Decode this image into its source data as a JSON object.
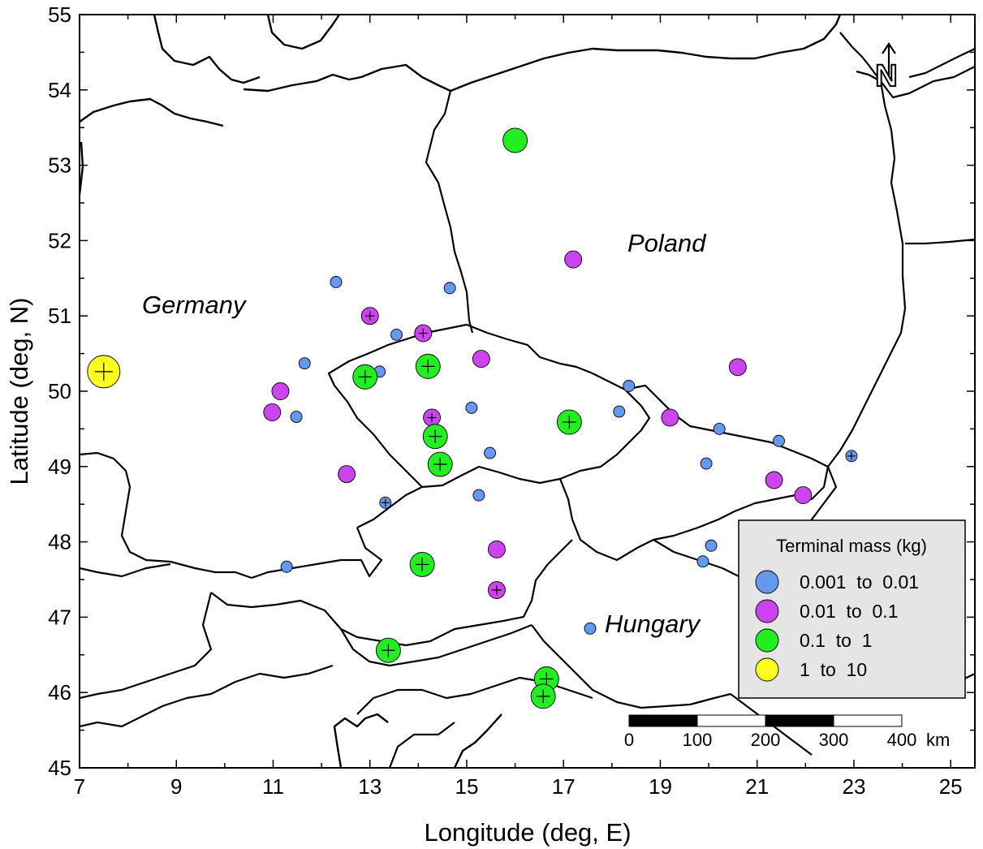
{
  "axes": {
    "x_label": "Longitude (deg, E)",
    "y_label": "Latitude (deg, N)",
    "x_ticks": [
      "7",
      "9",
      "11",
      "13",
      "15",
      "17",
      "19",
      "21",
      "23",
      "25"
    ],
    "y_ticks": [
      "45",
      "46",
      "47",
      "48",
      "49",
      "50",
      "51",
      "52",
      "53",
      "54",
      "55"
    ],
    "x_range": [
      7,
      25.5
    ],
    "y_range": [
      45,
      55
    ]
  },
  "country_labels": {
    "germany": "Germany",
    "poland": "Poland",
    "hungary": "Hungary"
  },
  "north_arrow": {
    "letter": "N"
  },
  "legend": {
    "title": "Terminal mass (kg)",
    "entries": [
      {
        "label": "0.001  to  0.01",
        "color": "#6699ee"
      },
      {
        "label": "0.01  to  0.1",
        "color": "#cc44ee"
      },
      {
        "label": "0.1  to  1",
        "color": "#22ee22"
      },
      {
        "label": "1  to  10",
        "color": "#ffff22"
      }
    ]
  },
  "scale_bar": {
    "labels": [
      "0",
      "100",
      "200",
      "300",
      "400"
    ],
    "unit": "km"
  },
  "points": [
    {
      "lon": 7.5,
      "lat": 50.26,
      "cls": 3,
      "cross": true
    },
    {
      "lon": 16.0,
      "lat": 53.33,
      "cls": 2,
      "cross": false
    },
    {
      "lon": 17.2,
      "lat": 51.75,
      "cls": 1,
      "cross": false
    },
    {
      "lon": 12.3,
      "lat": 51.45,
      "cls": 0,
      "cross": false
    },
    {
      "lon": 14.65,
      "lat": 51.37,
      "cls": 0,
      "cross": false
    },
    {
      "lon": 13.0,
      "lat": 51.0,
      "cls": 1,
      "cross": true
    },
    {
      "lon": 13.55,
      "lat": 50.75,
      "cls": 0,
      "cross": false
    },
    {
      "lon": 14.1,
      "lat": 50.77,
      "cls": 1,
      "cross": true
    },
    {
      "lon": 11.65,
      "lat": 50.37,
      "cls": 0,
      "cross": false
    },
    {
      "lon": 13.2,
      "lat": 50.26,
      "cls": 0,
      "cross": false
    },
    {
      "lon": 12.9,
      "lat": 50.19,
      "cls": 2,
      "cross": true
    },
    {
      "lon": 14.2,
      "lat": 50.33,
      "cls": 2,
      "cross": true
    },
    {
      "lon": 15.3,
      "lat": 50.43,
      "cls": 1,
      "cross": false
    },
    {
      "lon": 20.6,
      "lat": 50.32,
      "cls": 1,
      "cross": false
    },
    {
      "lon": 11.15,
      "lat": 50.0,
      "cls": 1,
      "cross": false
    },
    {
      "lon": 10.98,
      "lat": 49.72,
      "cls": 1,
      "cross": false
    },
    {
      "lon": 11.48,
      "lat": 49.66,
      "cls": 0,
      "cross": false
    },
    {
      "lon": 15.1,
      "lat": 49.78,
      "cls": 0,
      "cross": false
    },
    {
      "lon": 18.35,
      "lat": 50.07,
      "cls": 0,
      "cross": false
    },
    {
      "lon": 18.15,
      "lat": 49.73,
      "cls": 0,
      "cross": false
    },
    {
      "lon": 14.28,
      "lat": 49.65,
      "cls": 1,
      "cross": true
    },
    {
      "lon": 17.12,
      "lat": 49.59,
      "cls": 2,
      "cross": true
    },
    {
      "lon": 19.2,
      "lat": 49.65,
      "cls": 1,
      "cross": false
    },
    {
      "lon": 14.35,
      "lat": 49.4,
      "cls": 2,
      "cross": true
    },
    {
      "lon": 20.22,
      "lat": 49.5,
      "cls": 0,
      "cross": false
    },
    {
      "lon": 21.45,
      "lat": 49.34,
      "cls": 0,
      "cross": false
    },
    {
      "lon": 15.48,
      "lat": 49.18,
      "cls": 0,
      "cross": false
    },
    {
      "lon": 22.95,
      "lat": 49.14,
      "cls": 0,
      "cross": true
    },
    {
      "lon": 14.45,
      "lat": 49.03,
      "cls": 2,
      "cross": true
    },
    {
      "lon": 19.95,
      "lat": 49.04,
      "cls": 0,
      "cross": false
    },
    {
      "lon": 12.52,
      "lat": 48.9,
      "cls": 1,
      "cross": false
    },
    {
      "lon": 21.35,
      "lat": 48.82,
      "cls": 1,
      "cross": false
    },
    {
      "lon": 21.95,
      "lat": 48.62,
      "cls": 1,
      "cross": false
    },
    {
      "lon": 15.25,
      "lat": 48.62,
      "cls": 0,
      "cross": false
    },
    {
      "lon": 13.32,
      "lat": 48.52,
      "cls": 0,
      "cross": true
    },
    {
      "lon": 15.62,
      "lat": 47.9,
      "cls": 1,
      "cross": false
    },
    {
      "lon": 20.05,
      "lat": 47.95,
      "cls": 0,
      "cross": false
    },
    {
      "lon": 14.08,
      "lat": 47.7,
      "cls": 2,
      "cross": true
    },
    {
      "lon": 11.28,
      "lat": 47.67,
      "cls": 0,
      "cross": false
    },
    {
      "lon": 19.88,
      "lat": 47.74,
      "cls": 0,
      "cross": false
    },
    {
      "lon": 15.62,
      "lat": 47.36,
      "cls": 1,
      "cross": true
    },
    {
      "lon": 17.55,
      "lat": 46.85,
      "cls": 0,
      "cross": false
    },
    {
      "lon": 13.38,
      "lat": 46.56,
      "cls": 2,
      "cross": true
    },
    {
      "lon": 16.65,
      "lat": 46.18,
      "cls": 2,
      "cross": true
    },
    {
      "lon": 16.58,
      "lat": 45.95,
      "cls": 2,
      "cross": true
    }
  ]
}
